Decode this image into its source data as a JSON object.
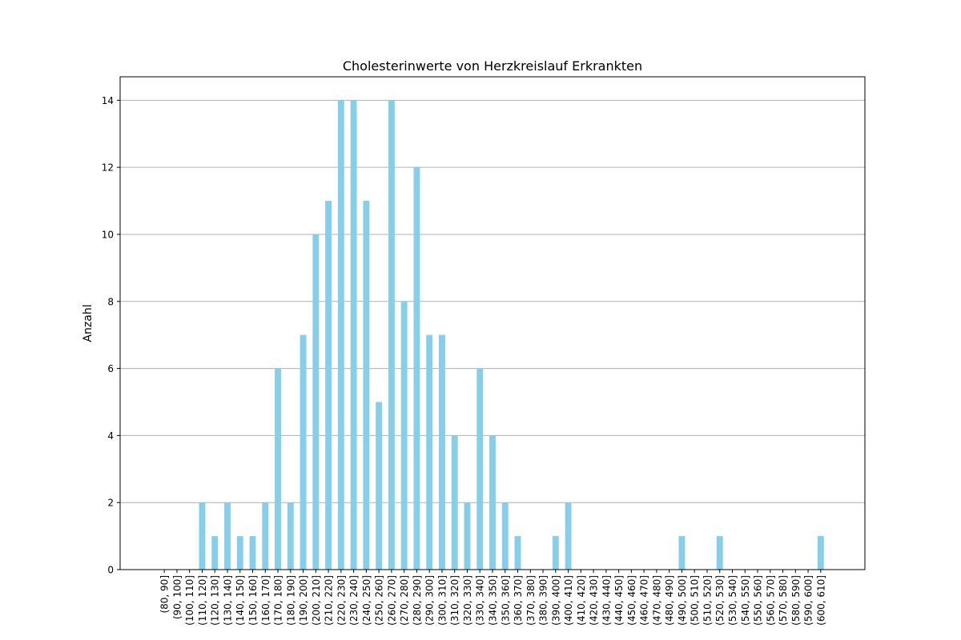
{
  "chart_data": {
    "type": "bar",
    "title": "Cholesterinwerte von Herzkreislauf Erkrankten",
    "xlabel": "",
    "ylabel": "Anzahl",
    "ylim": [
      0,
      14.7
    ],
    "yticks": [
      0,
      2,
      4,
      6,
      8,
      10,
      12,
      14
    ],
    "grid": "y",
    "bar_color": "#87CEEB",
    "categories": [
      "(80, 90]",
      "(90, 100]",
      "(100, 110]",
      "(110, 120]",
      "(120, 130]",
      "(130, 140]",
      "(140, 150]",
      "(150, 160]",
      "(160, 170]",
      "(170, 180]",
      "(180, 190]",
      "(190, 200]",
      "(200, 210]",
      "(210, 220]",
      "(220, 230]",
      "(230, 240]",
      "(240, 250]",
      "(250, 260]",
      "(260, 270]",
      "(270, 280]",
      "(280, 290]",
      "(290, 300]",
      "(300, 310]",
      "(310, 320]",
      "(320, 330]",
      "(330, 340]",
      "(340, 350]",
      "(350, 360]",
      "(360, 370]",
      "(370, 380]",
      "(380, 390]",
      "(390, 400]",
      "(400, 410]",
      "(410, 420]",
      "(420, 430]",
      "(430, 440]",
      "(440, 450]",
      "(450, 460]",
      "(460, 470]",
      "(470, 480]",
      "(480, 490]",
      "(490, 500]",
      "(500, 510]",
      "(510, 520]",
      "(520, 530]",
      "(530, 540]",
      "(540, 550]",
      "(550, 560]",
      "(560, 570]",
      "(570, 580]",
      "(580, 590]",
      "(590, 600]",
      "(600, 610]"
    ],
    "values": [
      0,
      0,
      0,
      2,
      1,
      2,
      1,
      1,
      2,
      6,
      2,
      7,
      10,
      11,
      14,
      14,
      11,
      5,
      14,
      8,
      12,
      7,
      7,
      4,
      2,
      6,
      4,
      2,
      1,
      0,
      0,
      1,
      2,
      0,
      0,
      0,
      0,
      0,
      0,
      0,
      0,
      1,
      0,
      0,
      1,
      0,
      0,
      0,
      0,
      0,
      0,
      0,
      1
    ]
  }
}
